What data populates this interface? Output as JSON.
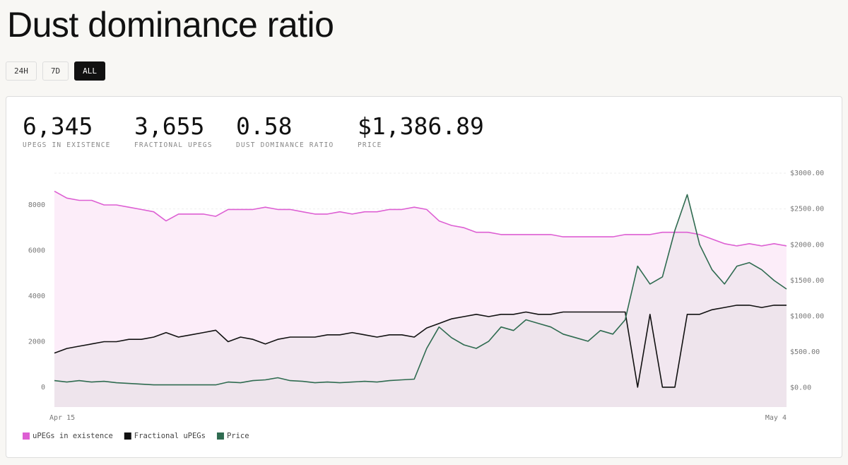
{
  "header": {
    "title": "Dust dominance ratio",
    "range_buttons": [
      {
        "label": "24H"
      },
      {
        "label": "7D"
      },
      {
        "label": "ALL",
        "selected": true
      }
    ]
  },
  "stats": [
    {
      "value": "6,345",
      "label": "UPEGS IN EXISTENCE"
    },
    {
      "value": "3,655",
      "label": "FRACTIONAL UPEGS"
    },
    {
      "value": "0.58",
      "label": "DUST DOMINANCE RATIO"
    },
    {
      "value": "$1,386.89",
      "label": "PRICE"
    }
  ],
  "chart_data": {
    "type": "line",
    "categories": [
      "Apr 15",
      null,
      null,
      null,
      null,
      null,
      null,
      null,
      null,
      null,
      null,
      null,
      null,
      null,
      null,
      null,
      null,
      null,
      null,
      null,
      null,
      null,
      null,
      null,
      null,
      null,
      null,
      null,
      null,
      null,
      null,
      null,
      null,
      null,
      null,
      null,
      null,
      null,
      null,
      null,
      null,
      null,
      null,
      null,
      null,
      null,
      null,
      null,
      null,
      null,
      null,
      null,
      null,
      null,
      null,
      null,
      null,
      null,
      null,
      "May 4"
    ],
    "series": [
      {
        "name": "uPEGs in existence",
        "color": "#dd5fd3",
        "area": "#fcedf9",
        "values": [
          8600,
          8300,
          8200,
          8200,
          8000,
          8000,
          7900,
          7800,
          7700,
          7300,
          7600,
          7600,
          7600,
          7500,
          7800,
          7800,
          7800,
          7900,
          7800,
          7800,
          7700,
          7600,
          7600,
          7700,
          7600,
          7700,
          7700,
          7800,
          7800,
          7900,
          7800,
          7300,
          7100,
          7000,
          6800,
          6800,
          6700,
          6700,
          6700,
          6700,
          6700,
          6600,
          6600,
          6600,
          6600,
          6600,
          6700,
          6700,
          6700,
          6800,
          6800,
          6800,
          6700,
          6500,
          6300,
          6200,
          6300,
          6200,
          6300,
          6200
        ]
      },
      {
        "name": "Fractional uPEGs",
        "color": "#111111",
        "area": "#ebe2e9",
        "values": [
          1500,
          1700,
          1800,
          1900,
          2000,
          2000,
          2100,
          2100,
          2200,
          2400,
          2200,
          2300,
          2400,
          2500,
          2000,
          2200,
          2100,
          1900,
          2100,
          2200,
          2200,
          2200,
          2300,
          2300,
          2400,
          2300,
          2200,
          2300,
          2300,
          2200,
          2600,
          2800,
          3000,
          3100,
          3200,
          3100,
          3200,
          3200,
          3300,
          3200,
          3200,
          3300,
          3300,
          3300,
          3300,
          3300,
          3300,
          0,
          3200,
          0,
          0,
          3200,
          3200,
          3400,
          3500,
          3600,
          3600,
          3500,
          3600,
          3600
        ]
      },
      {
        "name": "Price",
        "color": "#2f6b50",
        "area": "#ebe2e9",
        "axis": "y2",
        "values": [
          100,
          80,
          100,
          80,
          90,
          70,
          60,
          50,
          40,
          40,
          40,
          40,
          40,
          40,
          80,
          70,
          100,
          110,
          140,
          100,
          90,
          70,
          80,
          70,
          80,
          90,
          80,
          100,
          110,
          120,
          550,
          850,
          700,
          600,
          550,
          650,
          850,
          800,
          950,
          900,
          850,
          750,
          700,
          650,
          800,
          750,
          950,
          1700,
          1450,
          1550,
          2200,
          2700,
          2000,
          1650,
          1450,
          1700,
          1750,
          1650,
          1500,
          1380
        ]
      }
    ],
    "ylim": [
      -870,
      9550
    ],
    "yticks": [
      0,
      2000,
      4000,
      6000,
      8000
    ],
    "y2lim": [
      -270,
      3050
    ],
    "y2ticks": [
      {
        "value": 0,
        "label": "$0.00"
      },
      {
        "value": 500,
        "label": "$500.00"
      },
      {
        "value": 1000,
        "label": "$1000.00"
      },
      {
        "value": 1500,
        "label": "$1500.00"
      },
      {
        "value": 2000,
        "label": "$2000.00"
      },
      {
        "value": 2500,
        "label": "$2500.00"
      },
      {
        "value": 3000,
        "label": "$3000.00"
      }
    ],
    "grid": true,
    "legend": "bottom-left"
  }
}
